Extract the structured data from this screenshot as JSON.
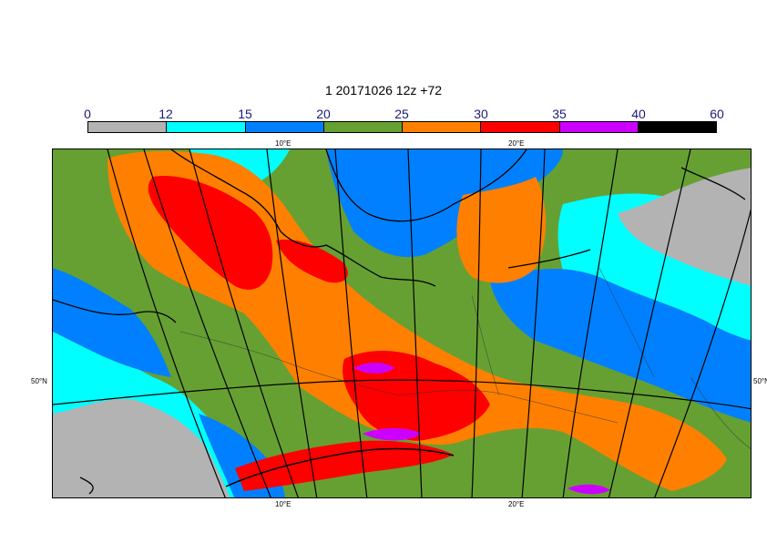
{
  "title": "1 20171026 12z +72",
  "colorbar": {
    "labels": [
      "0",
      "12",
      "15",
      "20",
      "25",
      "30",
      "35",
      "40",
      "60"
    ],
    "colors": [
      "#b3b3b3",
      "#00ffff",
      "#0080ff",
      "#66a033",
      "#ff8000",
      "#ff0000",
      "#cc00ff",
      "#000000"
    ]
  },
  "axes": {
    "lon_top_left": "10°E",
    "lon_top_right": "20°E",
    "lon_bottom_left": "10°E",
    "lon_bottom_right": "20°E",
    "lat_left": "50°N",
    "lat_right": "50°N"
  },
  "legend_colors": {
    "gray": "#b3b3b3",
    "cyan": "#00ffff",
    "blue": "#0080ff",
    "green": "#66a033",
    "orange": "#ff8000",
    "red": "#ff0000",
    "purple": "#cc00ff",
    "black": "#000000"
  }
}
